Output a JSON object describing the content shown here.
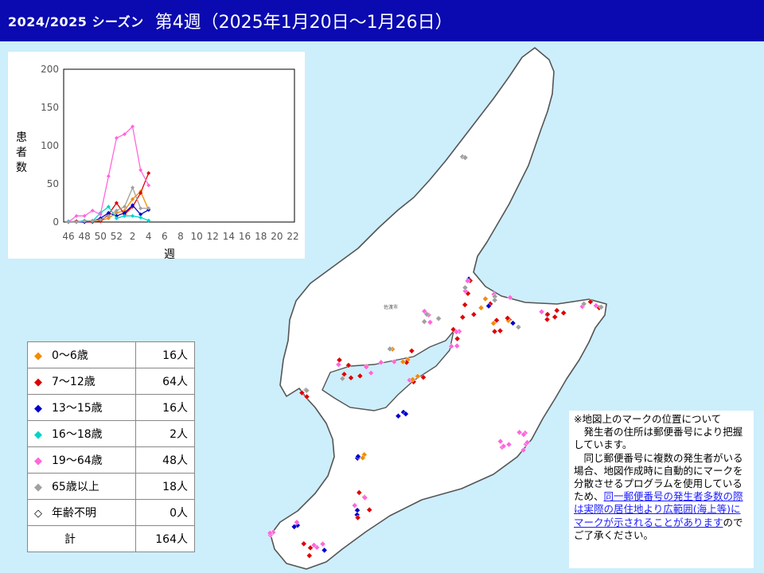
{
  "header": {
    "season": "2024/2025 シーズン",
    "week": "第4週（2025年1月20日～1月26日）"
  },
  "map": {
    "city_label": "佐渡市",
    "colors": {
      "sea": "#cdeefb",
      "land": "#ffffff",
      "coast": "#555555"
    }
  },
  "chart_data": {
    "type": "line",
    "title": "",
    "xlabel": "週",
    "ylabel": "患者数",
    "ylim": [
      0,
      200
    ],
    "y_ticks": [
      0,
      50,
      100,
      150,
      200
    ],
    "x_ticks": [
      "46",
      "48",
      "50",
      "52",
      "2",
      "4",
      "6",
      "8",
      "10",
      "12",
      "14",
      "16",
      "18",
      "20",
      "22"
    ],
    "weeks": [
      "46",
      "47",
      "48",
      "49",
      "50",
      "51",
      "52",
      "1",
      "2",
      "3",
      "4"
    ],
    "series": [
      {
        "color": "#f28c00",
        "marker": "diamond",
        "values": [
          0,
          0,
          1,
          0,
          2,
          5,
          12,
          15,
          30,
          40,
          16
        ]
      },
      {
        "color": "#dd0000",
        "marker": "diamond",
        "values": [
          0,
          1,
          0,
          0,
          1,
          10,
          25,
          10,
          20,
          38,
          64
        ]
      },
      {
        "color": "#0000cc",
        "marker": "diamond",
        "values": [
          0,
          0,
          0,
          1,
          5,
          12,
          8,
          12,
          22,
          10,
          16
        ]
      },
      {
        "color": "#00d4c8",
        "marker": "diamond",
        "values": [
          1,
          0,
          2,
          1,
          12,
          20,
          5,
          8,
          8,
          6,
          2
        ]
      },
      {
        "color": "#ff66dd",
        "marker": "diamond",
        "values": [
          0,
          8,
          8,
          15,
          10,
          60,
          110,
          115,
          125,
          68,
          48
        ]
      },
      {
        "color": "#a0a0a0",
        "marker": "diamond",
        "values": [
          0,
          0,
          1,
          2,
          3,
          8,
          15,
          20,
          45,
          18,
          18
        ]
      }
    ]
  },
  "legend": {
    "rows": [
      {
        "label": "0～6歳",
        "count": "16人",
        "symbol": "◆",
        "color": "#f28c00"
      },
      {
        "label": "7～12歳",
        "count": "64人",
        "symbol": "◆",
        "color": "#dd0000"
      },
      {
        "label": "13～15歳",
        "count": "16人",
        "symbol": "◆",
        "color": "#0000cc"
      },
      {
        "label": "16～18歳",
        "count": "2人",
        "symbol": "◆",
        "color": "#00d4c8"
      },
      {
        "label": "19～64歳",
        "count": "48人",
        "symbol": "◆",
        "color": "#ff66dd"
      },
      {
        "label": "65歳以上",
        "count": "18人",
        "symbol": "◆",
        "color": "#a0a0a0"
      },
      {
        "label": "年齢不明",
        "count": "0人",
        "symbol": "◇",
        "color": "#000000"
      }
    ],
    "total_label": "計",
    "total_count": "164人"
  },
  "note": {
    "line1": "※地図上のマークの位置について",
    "line2": "発生者の住所は郵便番号により把握しています。",
    "line3": "同じ郵便番号に複数の発生者がいる場合、地図作成時に自動的にマークを分散させるプログラムを使用しているため、",
    "link": "同一郵便番号の発生者多数の際は実際の居住地より広範囲(海上等)にマークが示されることがあります",
    "line4": "のでご了承ください。"
  }
}
